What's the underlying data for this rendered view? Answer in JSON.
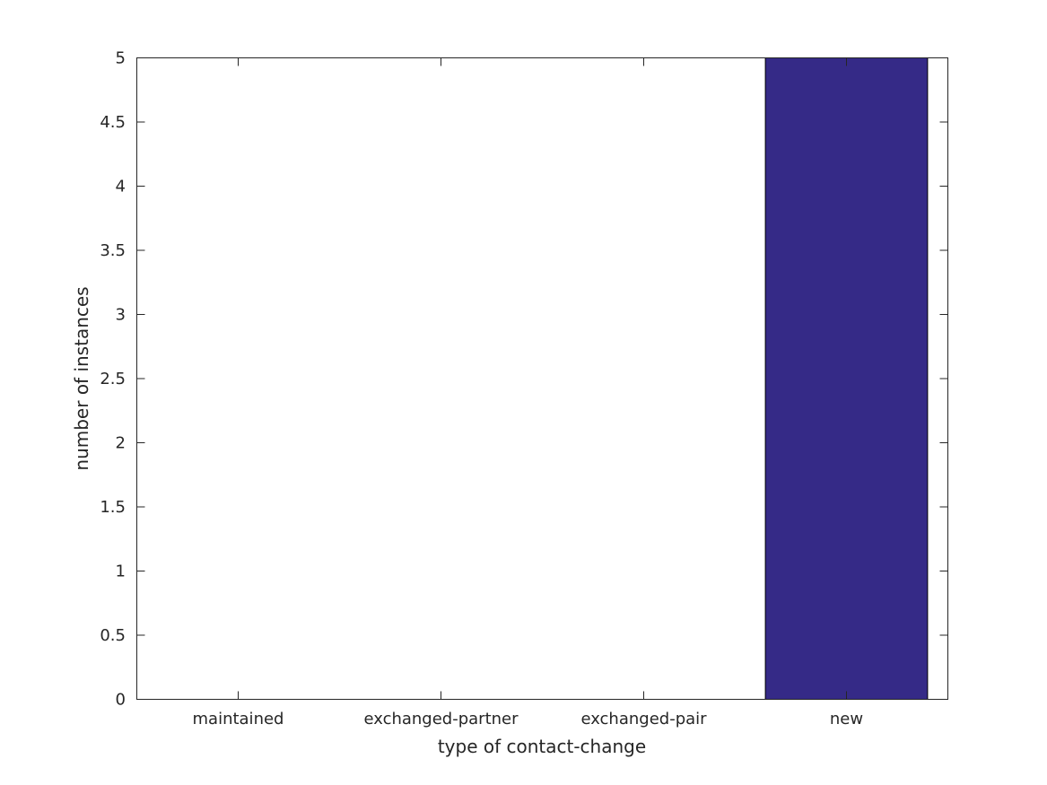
{
  "chart_data": {
    "type": "bar",
    "categories": [
      "maintained",
      "exchanged-partner",
      "exchanged-pair",
      "new"
    ],
    "values": [
      0,
      0,
      0,
      5
    ],
    "title": "",
    "xlabel": "type of contact-change",
    "ylabel": "number of instances",
    "ylim": [
      0,
      5
    ],
    "yticks": [
      0,
      0.5,
      1,
      1.5,
      2,
      2.5,
      3,
      3.5,
      4,
      4.5,
      5
    ],
    "ytick_labels": [
      "0",
      "0.5",
      "1",
      "1.5",
      "2",
      "2.5",
      "3",
      "3.5",
      "4",
      "4.5",
      "5"
    ],
    "grid": false,
    "bar_color": "#352a87",
    "axis_color": "#262626"
  }
}
